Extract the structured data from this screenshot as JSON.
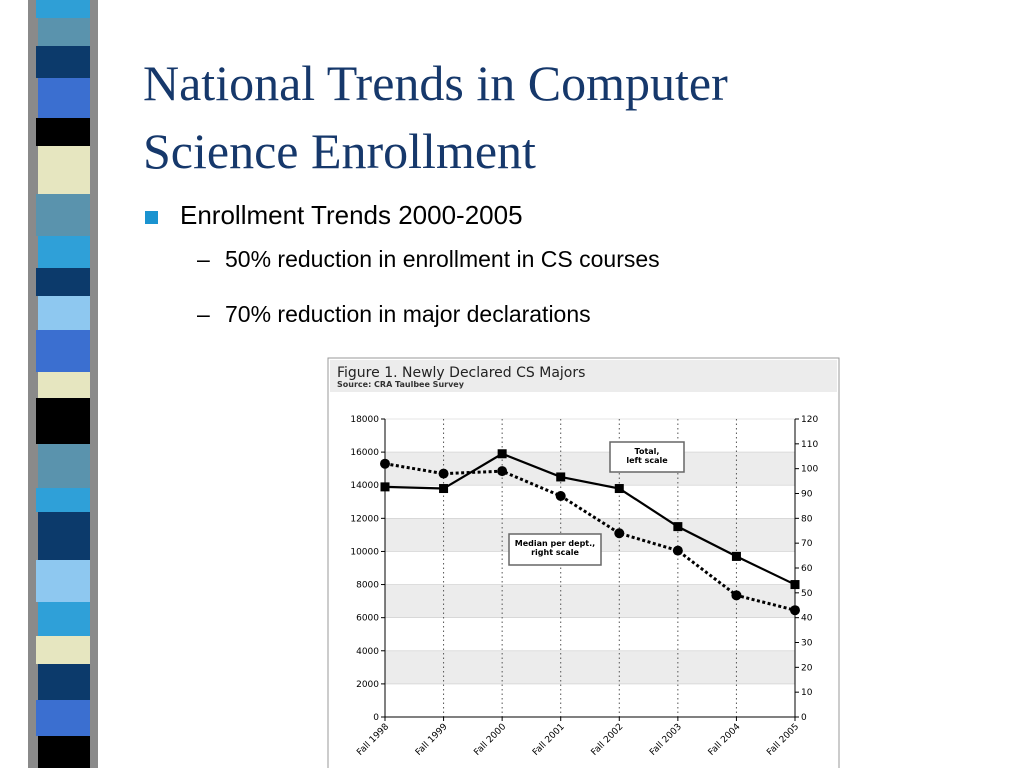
{
  "slide": {
    "title": [
      "National Trends in Computer",
      "Science Enrollment"
    ],
    "bullet": "Enrollment Trends 2000-2005",
    "subbullets": [
      "50% reduction in enrollment in CS courses",
      "70% reduction in major declarations"
    ]
  },
  "chart_data": {
    "type": "line",
    "title": "Figure 1. Newly Declared CS Majors",
    "subtitle": "Source: CRA Taulbee Survey",
    "categories": [
      "Fall 1998",
      "Fall 1999",
      "Fall 2000",
      "Fall 2001",
      "Fall 2002",
      "Fall 2003",
      "Fall 2004",
      "Fall 2005"
    ],
    "series": [
      {
        "name_lines": [
          "Total,",
          "left scale"
        ],
        "color": "#000000",
        "line_style": "solid",
        "marker": "square",
        "values": [
          13900,
          13800,
          15900,
          14500,
          13800,
          11500,
          9700,
          8000
        ]
      },
      {
        "name_lines": [
          "Median per dept.,",
          "right scale"
        ],
        "color": "#000000",
        "line_style": "dotted",
        "marker": "circle",
        "axis": "y2",
        "values": [
          102,
          98,
          99,
          89,
          74,
          67,
          49,
          43
        ]
      }
    ],
    "ylim": [
      0,
      18000
    ],
    "yticks": [
      0,
      2000,
      4000,
      6000,
      8000,
      10000,
      12000,
      14000,
      16000,
      18000
    ],
    "y2lim": [
      0,
      120
    ],
    "y2ticks": [
      0,
      10,
      20,
      30,
      40,
      50,
      60,
      70,
      80,
      90,
      100,
      110,
      120
    ],
    "grid": true
  }
}
